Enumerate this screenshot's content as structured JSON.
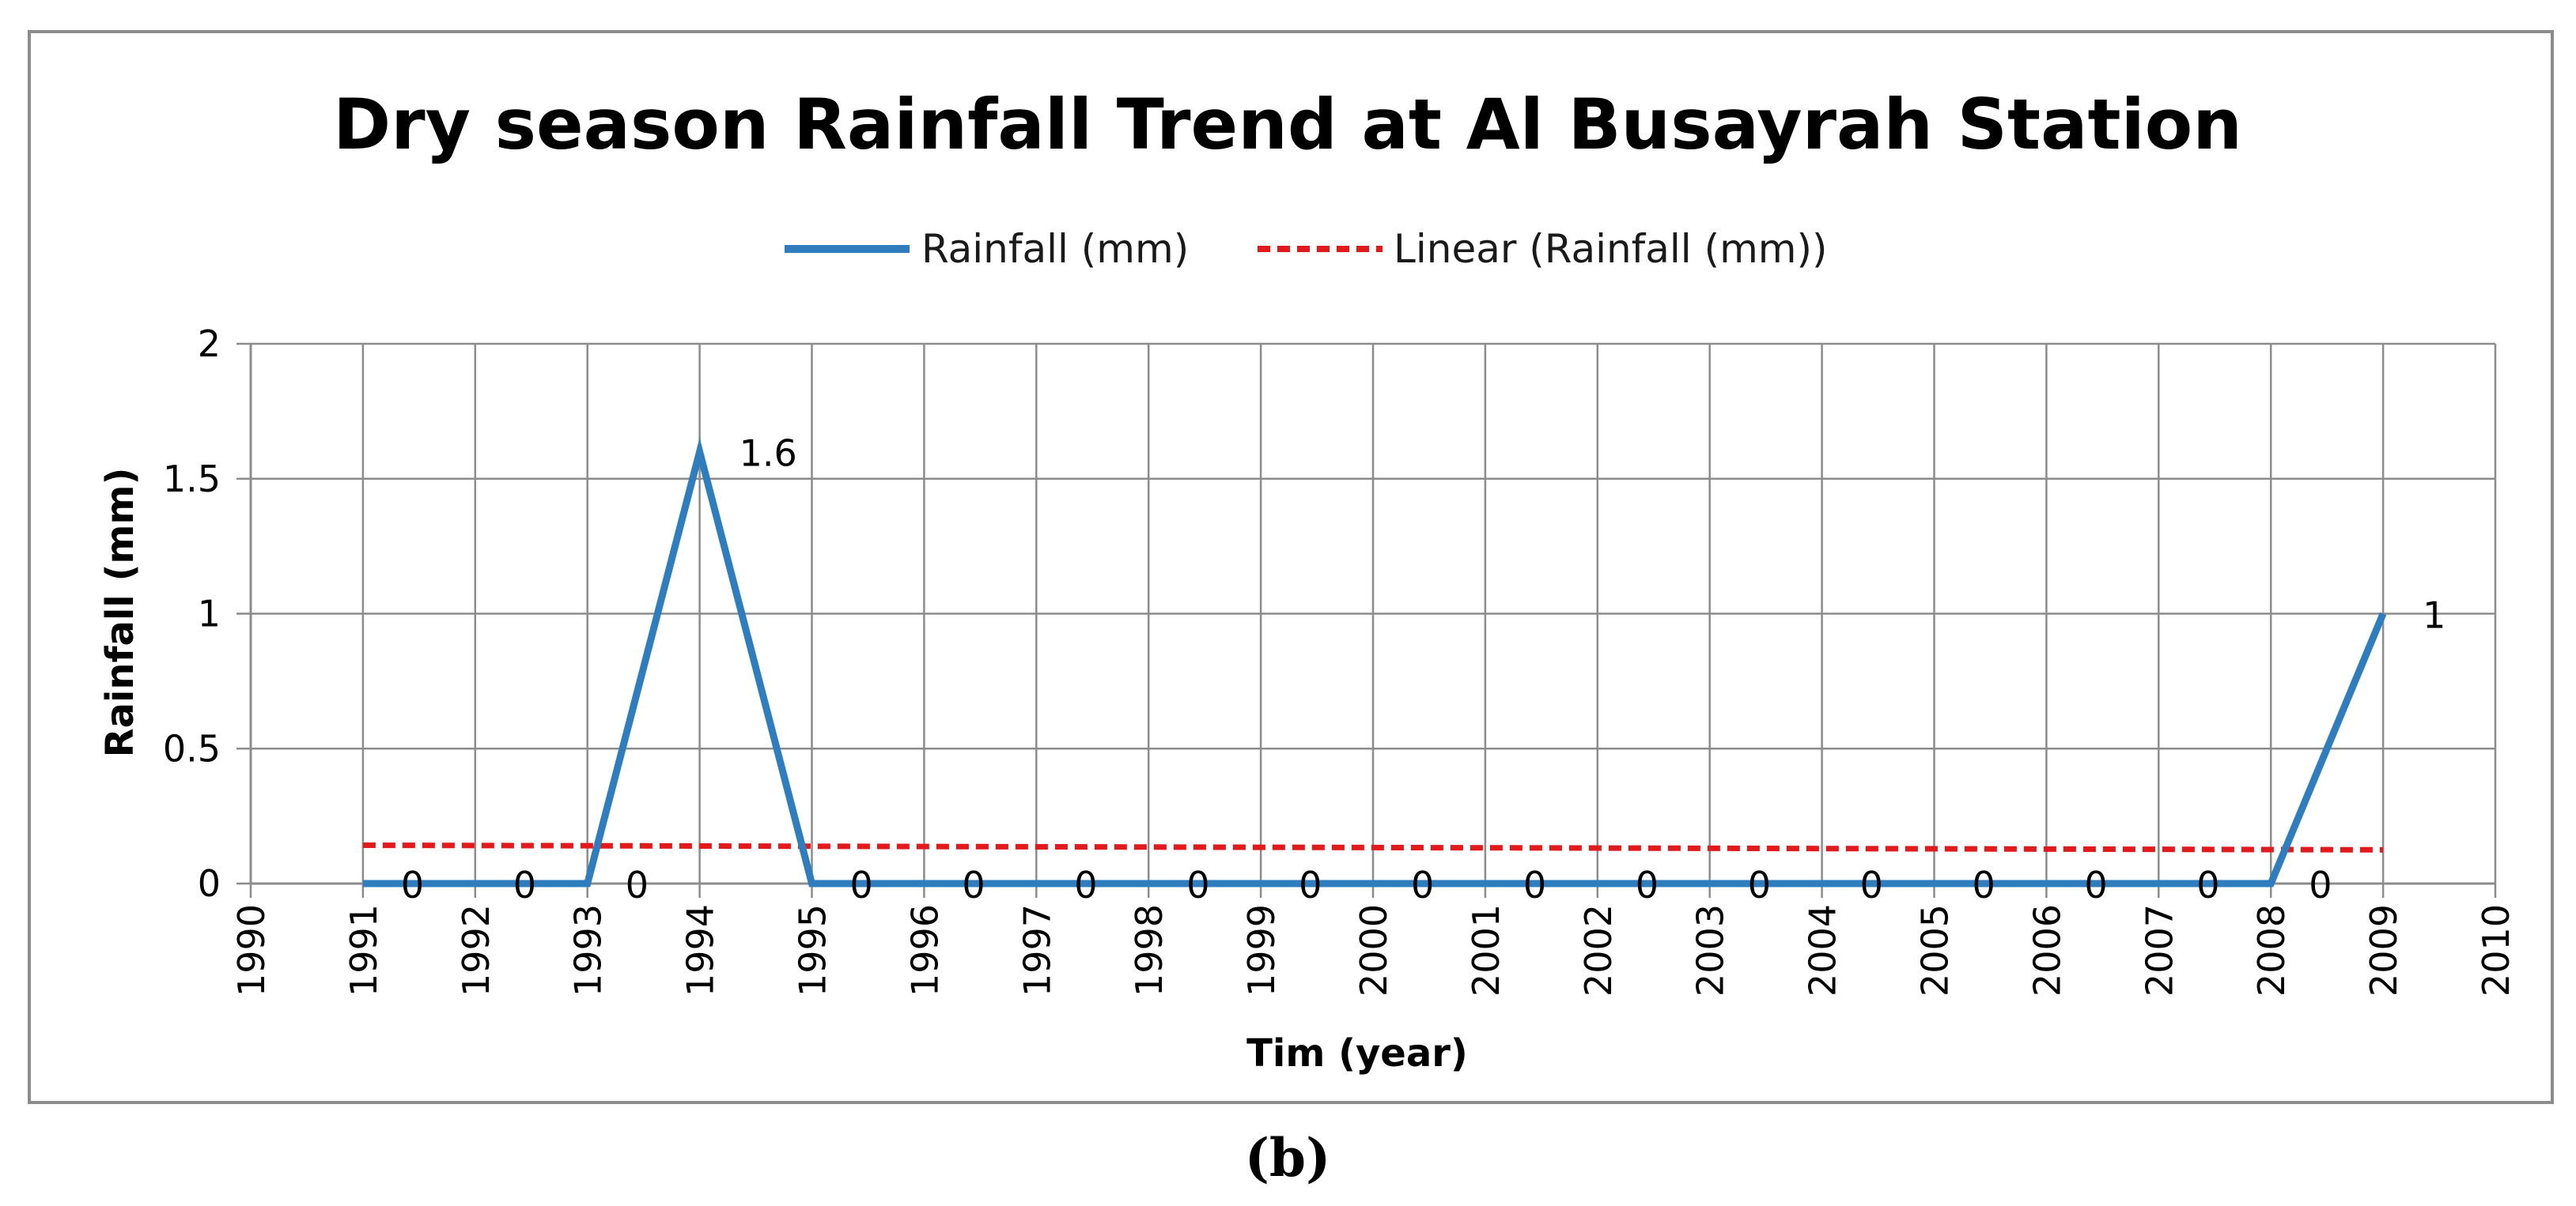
{
  "chart_data": {
    "type": "line",
    "title": "Dry season Rainfall Trend at Al Busayrah Station",
    "xlabel": "Tim (year)",
    "ylabel": "Rainfall (mm)",
    "xlim": [
      1990,
      2010
    ],
    "ylim": [
      0,
      2
    ],
    "x_ticks": [
      "1990",
      "1991",
      "1992",
      "1993",
      "1994",
      "1995",
      "1996",
      "1997",
      "1998",
      "1999",
      "2000",
      "2001",
      "2002",
      "2003",
      "2004",
      "2005",
      "2006",
      "2007",
      "2008",
      "2009",
      "2010"
    ],
    "y_ticks": [
      "0",
      "0.5",
      "1",
      "1.5",
      "2"
    ],
    "grid": true,
    "legend_position": "top-center",
    "series": [
      {
        "name": "Rainfall (mm)",
        "color": "#2e7ebf",
        "style": "solid",
        "x": [
          1991,
          1992,
          1993,
          1994,
          1995,
          1996,
          1997,
          1998,
          1999,
          2000,
          2001,
          2002,
          2003,
          2004,
          2005,
          2006,
          2007,
          2008,
          2009
        ],
        "values": [
          0,
          0,
          0,
          1.6,
          0,
          0,
          0,
          0,
          0,
          0,
          0,
          0,
          0,
          0,
          0,
          0,
          0,
          0,
          1
        ]
      },
      {
        "name": "Linear (Rainfall (mm))",
        "color": "#e31a1c",
        "style": "dashed",
        "x": [
          1991,
          2009
        ],
        "values": [
          0.142,
          0.125
        ]
      }
    ],
    "data_labels": [
      {
        "x": 1991,
        "text": "0"
      },
      {
        "x": 1992,
        "text": "0"
      },
      {
        "x": 1993,
        "text": "0"
      },
      {
        "x": 1994,
        "text": "1.6"
      },
      {
        "x": 1995,
        "text": "0"
      },
      {
        "x": 1996,
        "text": "0"
      },
      {
        "x": 1997,
        "text": "0"
      },
      {
        "x": 1998,
        "text": "0"
      },
      {
        "x": 1999,
        "text": "0"
      },
      {
        "x": 2000,
        "text": "0"
      },
      {
        "x": 2001,
        "text": "0"
      },
      {
        "x": 2002,
        "text": "0"
      },
      {
        "x": 2003,
        "text": "0"
      },
      {
        "x": 2004,
        "text": "0"
      },
      {
        "x": 2005,
        "text": "0"
      },
      {
        "x": 2006,
        "text": "0"
      },
      {
        "x": 2007,
        "text": "0"
      },
      {
        "x": 2008,
        "text": "0"
      },
      {
        "x": 2009,
        "text": "1"
      }
    ]
  },
  "caption": "(b)"
}
